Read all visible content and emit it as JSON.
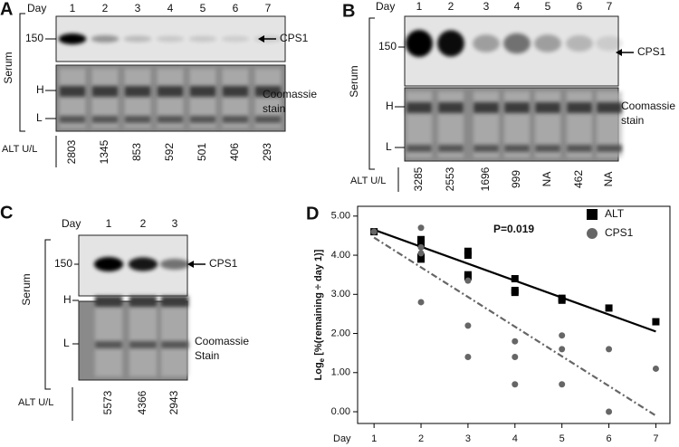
{
  "panels": [
    {
      "letter": "A",
      "day_label": "Day",
      "days": [
        "1",
        "2",
        "3",
        "4",
        "5",
        "6",
        "7"
      ],
      "mw": "150",
      "protein": "CPS1",
      "h": "H",
      "l": "L",
      "serum": "Serum",
      "stain": [
        "Coomassie",
        "stain"
      ],
      "alt_label": "ALT U/L",
      "alt": [
        "2803",
        "1345",
        "853",
        "592",
        "501",
        "406",
        "293"
      ]
    },
    {
      "letter": "B",
      "day_label": "Day",
      "days": [
        "1",
        "2",
        "3",
        "4",
        "5",
        "6",
        "7"
      ],
      "mw": "150",
      "protein": "CPS1",
      "h": "H",
      "l": "L",
      "serum": "Serum",
      "stain": [
        "Coomassie",
        "stain"
      ],
      "alt_label": "ALT U/L",
      "alt": [
        "3285",
        "2553",
        "1696",
        "999",
        "NA",
        "462",
        "NA"
      ]
    },
    {
      "letter": "C",
      "day_label": "Day",
      "days": [
        "1",
        "2",
        "3"
      ],
      "mw": "150",
      "protein": "CPS1",
      "h": "H",
      "l": "L",
      "serum": "Serum",
      "stain": [
        "Coomassie",
        "Stain"
      ],
      "alt_label": "ALT U/L",
      "alt": [
        "5573",
        "4366",
        "2943"
      ]
    }
  ],
  "chart_data": {
    "type": "scatter",
    "letter": "D",
    "xlabel": "Day",
    "ylabel": {
      "main": "Log",
      "sub": "e",
      "rest": " [%(remaining ÷ day 1)]"
    },
    "annotation": "P=0.019",
    "xlim": [
      0.65,
      7.3
    ],
    "xticks": [
      1,
      2,
      3,
      4,
      5,
      6,
      7
    ],
    "ylim": [
      -0.3,
      5.25
    ],
    "yticks": [
      {
        "value": 0,
        "label": "0.00"
      },
      {
        "value": 1,
        "label": "1.00"
      },
      {
        "value": 2,
        "label": "2.00"
      },
      {
        "value": 3,
        "label": "3.00"
      },
      {
        "value": 4,
        "label": "4.00"
      },
      {
        "value": 5,
        "label": "5.00"
      }
    ],
    "series": [
      {
        "name": "ALT",
        "color": "#000000",
        "marker": "square",
        "x": [
          1,
          2,
          2,
          2,
          2,
          3,
          3,
          3,
          3,
          4,
          4,
          4,
          5,
          5,
          6,
          7
        ],
        "values": [
          4.6,
          4.4,
          4.3,
          3.95,
          3.9,
          4.1,
          4.0,
          3.5,
          3.45,
          3.4,
          3.1,
          3.05,
          2.9,
          2.85,
          2.65,
          2.3
        ]
      },
      {
        "name": "CPS1",
        "color": "#666666",
        "marker": "circle",
        "x": [
          1,
          2,
          2,
          2,
          2,
          3,
          3,
          3,
          4,
          4,
          4,
          5,
          5,
          5,
          6,
          6,
          7
        ],
        "values": [
          4.6,
          4.7,
          4.2,
          4.05,
          2.8,
          3.35,
          2.2,
          1.4,
          1.8,
          1.4,
          0.7,
          1.95,
          1.6,
          0.7,
          1.6,
          0.0,
          1.1
        ]
      }
    ],
    "trendlines": [
      {
        "color": "#000000",
        "dash": false,
        "x": [
          1,
          7
        ],
        "values": [
          4.65,
          2.05
        ]
      },
      {
        "color": "#666666",
        "dash": true,
        "x": [
          1,
          7
        ],
        "values": [
          4.45,
          -0.1
        ]
      }
    ]
  }
}
